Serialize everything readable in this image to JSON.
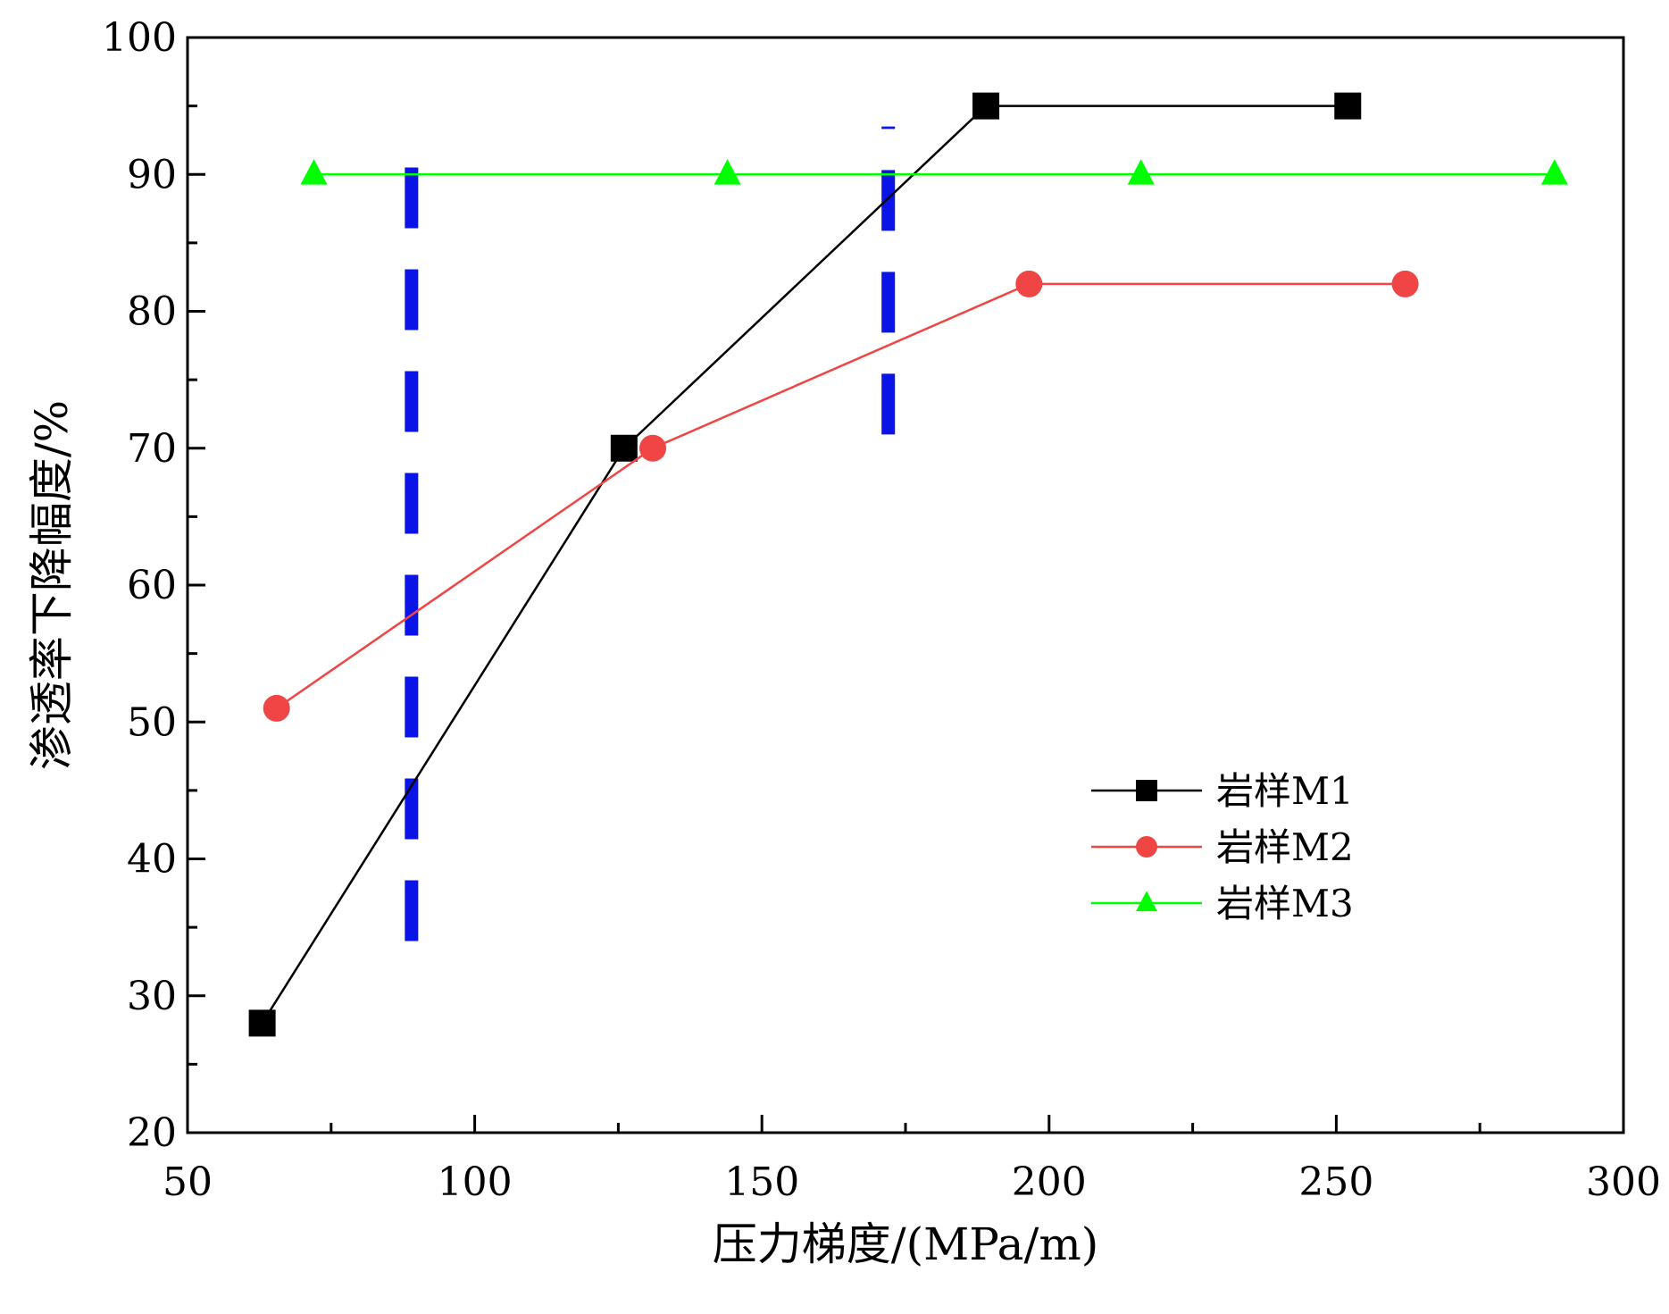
{
  "chart_data": {
    "type": "line",
    "title": "",
    "xlabel": "压力梯度/(MPa/m)",
    "ylabel": "渗透率下降幅度/%",
    "xlim": [
      50,
      300
    ],
    "ylim": [
      20,
      100
    ],
    "x_ticks": [
      "50",
      "100",
      "150",
      "200",
      "250",
      "300"
    ],
    "y_ticks": [
      "20",
      "30",
      "40",
      "50",
      "60",
      "70",
      "80",
      "90",
      "100"
    ],
    "x_tick_values": [
      50,
      100,
      150,
      200,
      250,
      300
    ],
    "y_tick_values": [
      20,
      30,
      40,
      50,
      60,
      70,
      80,
      90,
      100
    ],
    "grid": false,
    "legend_position": "lower-right",
    "series": [
      {
        "name": "岩样M1",
        "marker": "square",
        "color": "#000000",
        "x": [
          63,
          126,
          189,
          252
        ],
        "y": [
          28,
          70,
          95,
          95
        ]
      },
      {
        "name": "岩样M2",
        "marker": "circle",
        "color": "#f04545",
        "x": [
          65.5,
          131,
          196.5,
          262
        ],
        "y": [
          51,
          70,
          82,
          82
        ]
      },
      {
        "name": "岩样M3",
        "marker": "triangle",
        "color": "#00ff00",
        "x": [
          72,
          144,
          216,
          288
        ],
        "y": [
          90,
          90,
          90,
          90
        ]
      }
    ],
    "reference_lines": [
      {
        "x": 89,
        "y_range": [
          34,
          92.5
        ],
        "color": "#0a14e6",
        "style": "dashed"
      },
      {
        "x": 172,
        "y_range": [
          71,
          93.5
        ],
        "color": "#0a14e6",
        "style": "dashed"
      }
    ]
  }
}
